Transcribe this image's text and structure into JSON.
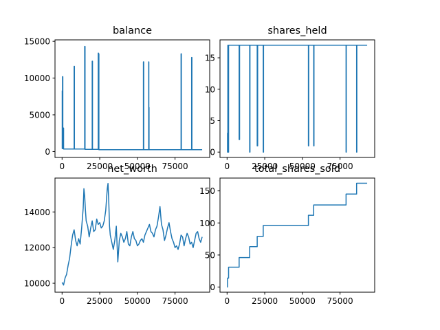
{
  "figure": {
    "line_color": "#1f77b4",
    "background": "#ffffff"
  },
  "chart_data": [
    {
      "id": "balance",
      "type": "line",
      "title": "balance",
      "xlim": [
        -4700,
        98000
      ],
      "ylim": [
        -800,
        15200
      ],
      "xticks": [
        0,
        25000,
        50000,
        75000
      ],
      "xtick_labels": [
        "0",
        "25000",
        "50000",
        "75000"
      ],
      "yticks": [
        0,
        5000,
        10000,
        15000
      ],
      "ytick_labels": [
        "0",
        "5000",
        "10000",
        "15000"
      ],
      "x": [
        0,
        100,
        100,
        300,
        300,
        500,
        500,
        800,
        800,
        1000,
        1000,
        8000,
        8000,
        8200,
        8200,
        15000,
        15000,
        15250,
        15250,
        20000,
        20000,
        20200,
        20200,
        24000,
        24000,
        24150,
        24150,
        24300,
        24300,
        24450,
        24450,
        25000,
        54000,
        54000,
        54200,
        54200,
        57500,
        57500,
        57600,
        57600,
        57750,
        57750,
        79000,
        79000,
        79200,
        79200,
        86000,
        86000,
        86200,
        86200,
        93000
      ],
      "y": [
        8300,
        8300,
        400,
        400,
        10200,
        10200,
        400,
        400,
        3200,
        3200,
        350,
        350,
        11600,
        11600,
        350,
        350,
        14300,
        14300,
        300,
        300,
        12300,
        12300,
        300,
        300,
        13400,
        13400,
        2000,
        2000,
        13300,
        13300,
        250,
        250,
        250,
        12200,
        12200,
        250,
        250,
        12200,
        12200,
        6000,
        6000,
        250,
        250,
        13300,
        13300,
        250,
        250,
        12800,
        12800,
        250,
        250
      ]
    },
    {
      "id": "shares_held",
      "type": "line",
      "title": "shares_held",
      "xlim": [
        -4700,
        98000
      ],
      "ylim": [
        -0.85,
        17.85
      ],
      "xticks": [
        0,
        25000,
        50000,
        75000
      ],
      "xtick_labels": [
        "0",
        "25000",
        "50000",
        "75000"
      ],
      "yticks": [
        0,
        5,
        10,
        15
      ],
      "ytick_labels": [
        "0",
        "5",
        "10",
        "15"
      ],
      "x": [
        0,
        300,
        300,
        500,
        500,
        800,
        800,
        1000,
        1000,
        8000,
        8000,
        8300,
        8300,
        15000,
        15000,
        15200,
        15200,
        20000,
        20000,
        20300,
        20300,
        24000,
        24000,
        24200,
        24200,
        54000,
        54000,
        54200,
        54200,
        57500,
        57500,
        57700,
        57700,
        79000,
        79000,
        79150,
        79150,
        86000,
        86000,
        86150,
        86150,
        93000
      ],
      "y": [
        3,
        3,
        0,
        0,
        17,
        17,
        0,
        0,
        17,
        17,
        2,
        2,
        17,
        17,
        0,
        0,
        17,
        17,
        1,
        1,
        17,
        17,
        0,
        0,
        17,
        17,
        1,
        1,
        17,
        17,
        1,
        1,
        17,
        17,
        0,
        0,
        17,
        17,
        0,
        0,
        17,
        17
      ]
    },
    {
      "id": "net_worth",
      "type": "line",
      "title": "net_worth",
      "xlim": [
        -4700,
        98000
      ],
      "ylim": [
        9500,
        15900
      ],
      "xticks": [
        0,
        25000,
        50000,
        75000
      ],
      "xtick_labels": [
        "0",
        "25000",
        "50000",
        "75000"
      ],
      "yticks": [
        10000,
        12000,
        14000
      ],
      "ytick_labels": [
        "10000",
        "12000",
        "14000"
      ],
      "x": [
        0,
        1000,
        2000,
        3000,
        4000,
        5000,
        6000,
        7000,
        8000,
        9000,
        10000,
        11000,
        12000,
        13000,
        14000,
        14500,
        15000,
        15500,
        16000,
        17000,
        18000,
        19000,
        20000,
        21000,
        22000,
        23000,
        24000,
        25000,
        26000,
        27000,
        28000,
        29000,
        30000,
        30500,
        31000,
        31500,
        32000,
        33000,
        34000,
        35000,
        36000,
        37000,
        38000,
        39000,
        40000,
        41000,
        42000,
        43000,
        44000,
        45000,
        46000,
        47000,
        48000,
        49000,
        50000,
        51000,
        52000,
        53000,
        54000,
        55000,
        56000,
        57000,
        58000,
        59000,
        60000,
        61000,
        62000,
        63000,
        64000,
        65000,
        66000,
        67000,
        68000,
        69000,
        70000,
        71000,
        72000,
        73000,
        74000,
        75000,
        76000,
        77000,
        78000,
        79000,
        80000,
        81000,
        82000,
        83000,
        84000,
        85000,
        86000,
        87000,
        88000,
        89000,
        90000,
        91000,
        92000,
        93000
      ],
      "y": [
        10050,
        9900,
        10300,
        10500,
        11000,
        11400,
        12100,
        12700,
        13000,
        12400,
        12100,
        12500,
        12200,
        13100,
        14200,
        15300,
        14900,
        14100,
        13500,
        13200,
        12600,
        13100,
        13500,
        12900,
        13000,
        13600,
        13300,
        13400,
        13100,
        13200,
        13500,
        14100,
        15300,
        15600,
        14600,
        13200,
        12700,
        12300,
        11900,
        12400,
        13200,
        11200,
        12400,
        12800,
        12600,
        12300,
        12500,
        12900,
        12200,
        12100,
        12600,
        12900,
        12500,
        12400,
        12100,
        12200,
        12400,
        12500,
        12300,
        12700,
        12900,
        13100,
        13300,
        12900,
        12800,
        12600,
        13000,
        13200,
        13700,
        14300,
        13300,
        13000,
        12400,
        12700,
        13100,
        13400,
        12900,
        12500,
        12300,
        12000,
        12100,
        11900,
        12200,
        12700,
        12600,
        12100,
        12500,
        12800,
        12600,
        12200,
        12300,
        12000,
        12400,
        12800,
        12900,
        12500,
        12300,
        12600
      ]
    },
    {
      "id": "total_shares_sold",
      "type": "line",
      "title": "total_shares_sold",
      "xlim": [
        -4700,
        98000
      ],
      "ylim": [
        -8,
        170
      ],
      "xticks": [
        0,
        25000,
        50000,
        75000
      ],
      "xtick_labels": [
        "0",
        "25000",
        "50000",
        "75000"
      ],
      "yticks": [
        0,
        50,
        100,
        150
      ],
      "ytick_labels": [
        "0",
        "50",
        "100",
        "150"
      ],
      "x": [
        0,
        300,
        300,
        1000,
        1000,
        8000,
        8000,
        15000,
        15000,
        20000,
        20000,
        24000,
        24000,
        54000,
        54000,
        57500,
        57500,
        79000,
        79000,
        86000,
        86000,
        93000
      ],
      "y": [
        0,
        0,
        14,
        14,
        31,
        31,
        46,
        46,
        63,
        63,
        79,
        79,
        96,
        96,
        112,
        112,
        128,
        128,
        145,
        145,
        162,
        162
      ]
    }
  ]
}
